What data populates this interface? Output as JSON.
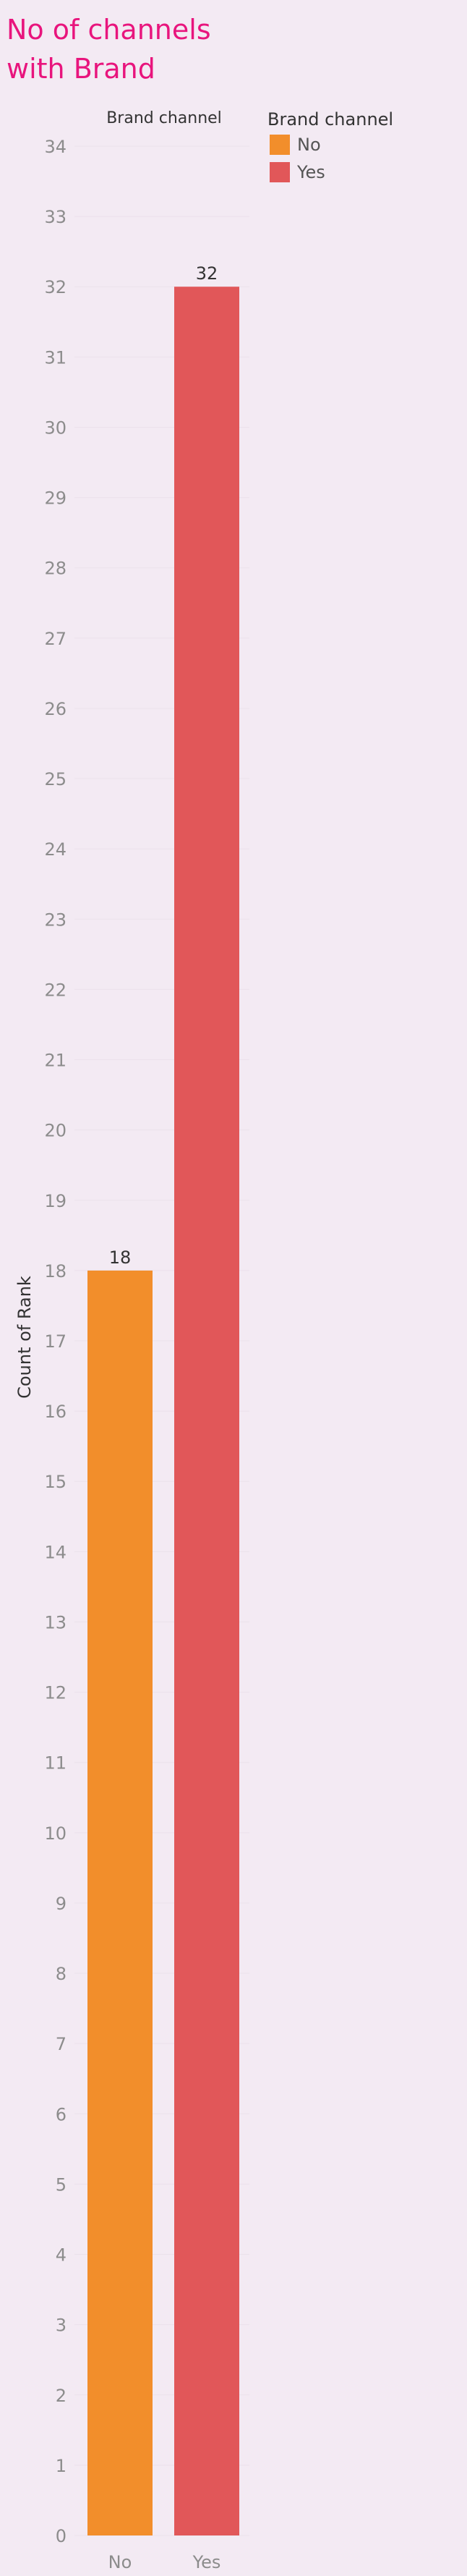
{
  "chart_data": {
    "type": "bar",
    "title": "No of channels with Brand",
    "column_header": "Brand channel",
    "ylabel": "Count of Rank",
    "xlabel": "",
    "categories": [
      "No",
      "Yes"
    ],
    "values": [
      18,
      32
    ],
    "ylim": [
      0,
      34
    ],
    "yticks": [
      0,
      1,
      2,
      3,
      4,
      5,
      6,
      7,
      8,
      9,
      10,
      11,
      12,
      13,
      14,
      15,
      16,
      17,
      18,
      19,
      20,
      21,
      22,
      23,
      24,
      25,
      26,
      27,
      28,
      29,
      30,
      31,
      32,
      33,
      34
    ],
    "grid": true,
    "legend": {
      "title": "Brand channel",
      "placement": "top-right",
      "entries": [
        {
          "label": "No",
          "color": "#f28e2b"
        },
        {
          "label": "Yes",
          "color": "#e15759"
        }
      ]
    },
    "colors": [
      "#f28e2b",
      "#e15759"
    ]
  }
}
